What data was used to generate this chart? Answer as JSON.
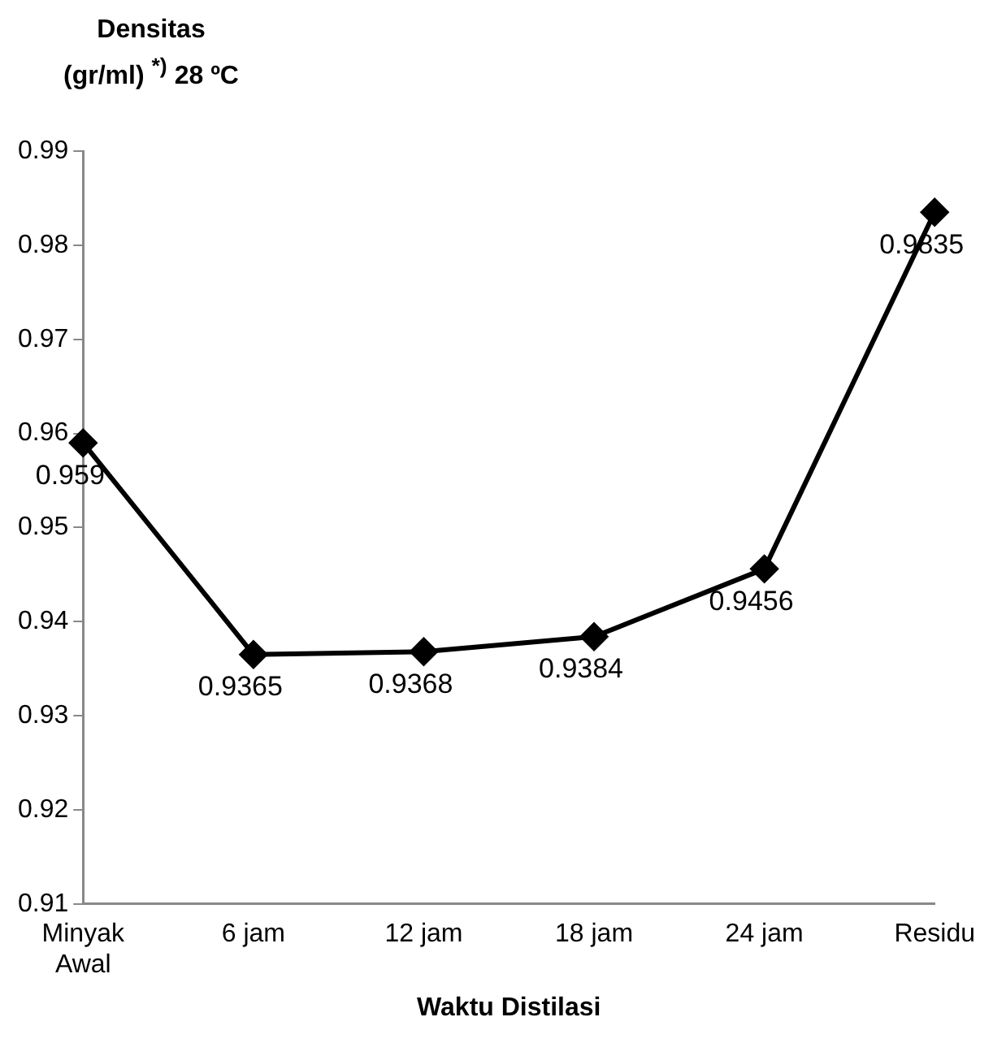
{
  "chart_data": {
    "type": "line",
    "ylabel": "Densitas (gr/ml) $^{*)}$ 28 ºC",
    "xlabel": "Waktu Distilasi",
    "categories": [
      "Minyak Awal",
      "6 jam",
      "12 jam",
      "18 jam",
      "24 jam",
      "Residu"
    ],
    "values": [
      0.959,
      0.9365,
      0.9368,
      0.9384,
      0.9456,
      0.9835
    ],
    "color": "#000000",
    "marker": "diamond",
    "data_labels": true,
    "grid": false,
    "legend": false,
    "ylim": [
      0.91,
      0.99
    ],
    "yticks": [
      0.91,
      0.92,
      0.93,
      0.94,
      0.95,
      0.96,
      0.97,
      0.98,
      0.99
    ]
  }
}
